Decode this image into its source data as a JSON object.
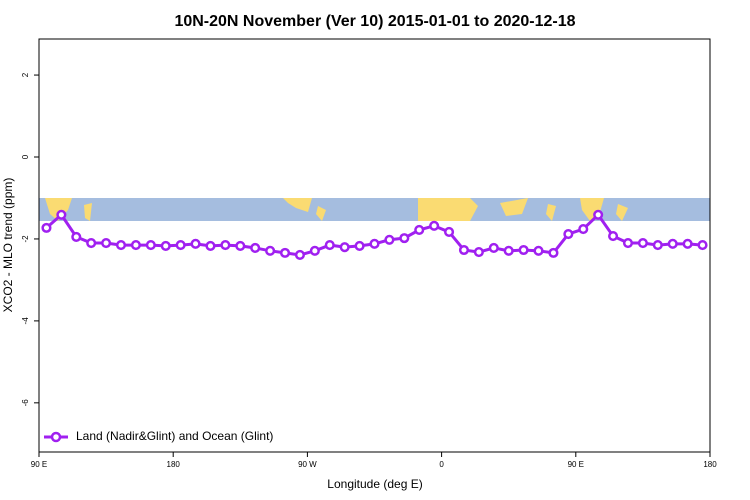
{
  "chart_data": {
    "type": "line",
    "title": "10N-20N November (Ver 10)   2015-01-01 to 2020-12-18",
    "x_label": "Longitude (deg E)",
    "y_label": "XCO2 - MLO trend (ppm)",
    "x": [
      95,
      105,
      115,
      125,
      135,
      145,
      155,
      165,
      175,
      185,
      195,
      205,
      215,
      225,
      235,
      245,
      255,
      265,
      275,
      285,
      295,
      305,
      315,
      325,
      335,
      345,
      355,
      365,
      375,
      385,
      395,
      405,
      415,
      425,
      435,
      445,
      455,
      465,
      475,
      485,
      495,
      505,
      515,
      525,
      535
    ],
    "series": [
      {
        "name": "Land (Nadir&Glint) and Ocean (Glint)",
        "color": "#a020f0",
        "values": [
          -1.73,
          -1.41,
          -1.95,
          -2.1,
          -2.1,
          -2.15,
          -2.15,
          -2.15,
          -2.17,
          -2.15,
          -2.12,
          -2.17,
          -2.15,
          -2.17,
          -2.22,
          -2.29,
          -2.34,
          -2.39,
          -2.29,
          -2.15,
          -2.2,
          -2.17,
          -2.12,
          -2.02,
          -1.98,
          -1.78,
          -1.68,
          -1.83,
          -2.27,
          -2.32,
          -2.22,
          -2.29,
          -2.27,
          -2.29,
          -2.34,
          -1.88,
          -1.76,
          -1.41,
          -1.93,
          -2.1,
          -2.1,
          -2.15,
          -2.12,
          -2.12,
          -2.15
        ]
      }
    ],
    "xlim": [
      90,
      540
    ],
    "xticks": [
      {
        "value": 90,
        "label": "90 E"
      },
      180,
      {
        "value": 270,
        "label": "90 W"
      },
      {
        "value": 360,
        "label": "0"
      },
      {
        "value": 450,
        "label": "90 E"
      },
      {
        "value": 540,
        "label": "180"
      }
    ],
    "ylim": [
      -7.2,
      2.88
    ],
    "yticks": [
      2,
      0,
      -2,
      -4,
      -6
    ],
    "legend": "bottom-left"
  }
}
